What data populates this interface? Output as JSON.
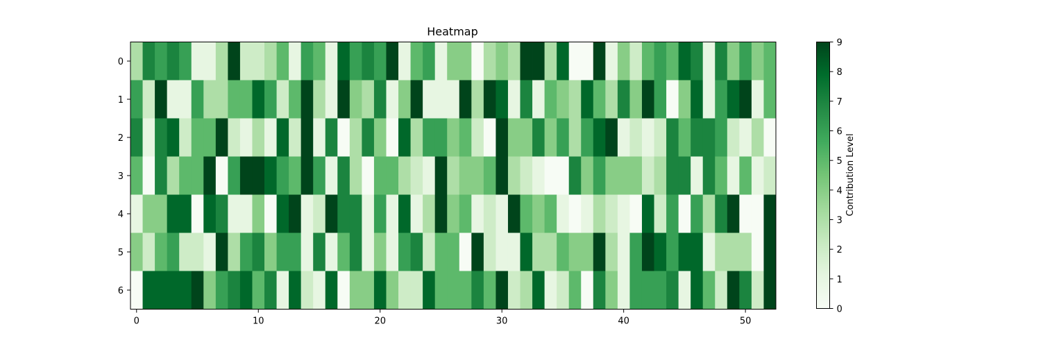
{
  "chart_data": {
    "type": "heatmap",
    "title": "Heatmap",
    "xlabel": "",
    "ylabel": "",
    "colormap": "Greens",
    "colorbar_label": "Contribution Level",
    "vmin": 0,
    "vmax": 9,
    "x_ticks": [
      0,
      10,
      20,
      30,
      40,
      50
    ],
    "y_ticks": [
      0,
      1,
      2,
      3,
      4,
      5,
      6
    ],
    "colorbar_ticks": [
      0,
      1,
      2,
      3,
      4,
      5,
      6,
      7,
      8,
      9
    ],
    "grid": false,
    "rows": 7,
    "cols": 53,
    "matrix": [
      [
        3,
        7,
        6,
        7,
        6,
        1,
        1,
        3,
        9,
        2,
        2,
        3,
        5,
        1,
        6,
        5,
        1,
        8,
        6,
        7,
        6,
        9,
        1,
        5,
        6,
        1,
        4,
        4,
        0,
        3,
        4,
        3,
        9,
        9,
        3,
        8,
        0,
        0,
        9,
        1,
        4,
        2,
        5,
        6,
        5,
        8,
        7,
        1,
        7,
        4,
        6,
        4,
        5
      ],
      [
        6,
        2,
        9,
        1,
        1,
        6,
        3,
        3,
        5,
        5,
        8,
        6,
        2,
        5,
        9,
        3,
        1,
        9,
        4,
        3,
        7,
        1,
        4,
        9,
        1,
        1,
        1,
        9,
        3,
        9,
        8,
        1,
        7,
        1,
        5,
        4,
        3,
        8,
        5,
        3,
        7,
        4,
        9,
        6,
        0,
        4,
        8,
        1,
        6,
        8,
        9,
        1,
        5
      ],
      [
        7,
        1,
        7,
        8,
        2,
        5,
        5,
        9,
        2,
        1,
        3,
        1,
        8,
        2,
        9,
        1,
        7,
        0,
        3,
        7,
        4,
        0,
        8,
        3,
        6,
        6,
        4,
        5,
        2,
        0,
        9,
        4,
        4,
        7,
        4,
        6,
        3,
        6,
        8,
        9,
        1,
        2,
        1,
        2,
        7,
        5,
        7,
        7,
        6,
        2,
        1,
        3,
        0
      ],
      [
        5,
        0,
        7,
        3,
        5,
        5,
        9,
        0,
        6,
        9,
        9,
        8,
        6,
        5,
        9,
        6,
        1,
        7,
        3,
        0,
        5,
        5,
        3,
        2,
        1,
        9,
        3,
        4,
        4,
        5,
        9,
        3,
        2,
        1,
        0,
        0,
        7,
        4,
        6,
        4,
        4,
        4,
        2,
        3,
        7,
        7,
        1,
        7,
        5,
        1,
        5,
        1,
        2
      ],
      [
        1,
        4,
        4,
        8,
        8,
        0,
        8,
        7,
        1,
        1,
        4,
        0,
        8,
        9,
        1,
        2,
        9,
        7,
        7,
        1,
        6,
        1,
        8,
        1,
        3,
        9,
        4,
        5,
        1,
        2,
        1,
        9,
        5,
        4,
        5,
        1,
        0,
        1,
        3,
        2,
        1,
        0,
        8,
        2,
        6,
        0,
        6,
        3,
        7,
        9,
        0,
        0,
        9
      ],
      [
        4,
        2,
        5,
        6,
        2,
        2,
        1,
        9,
        3,
        6,
        7,
        4,
        6,
        6,
        1,
        7,
        1,
        5,
        7,
        1,
        4,
        1,
        6,
        7,
        2,
        5,
        5,
        0,
        9,
        2,
        1,
        1,
        8,
        3,
        3,
        5,
        4,
        4,
        9,
        3,
        1,
        6,
        9,
        8,
        6,
        8,
        8,
        1,
        3,
        3,
        3,
        0,
        9
      ],
      [
        0,
        8,
        8,
        8,
        8,
        9,
        4,
        6,
        7,
        8,
        5,
        7,
        1,
        8,
        2,
        1,
        8,
        0,
        4,
        4,
        8,
        4,
        2,
        2,
        8,
        5,
        5,
        5,
        7,
        5,
        9,
        2,
        3,
        8,
        1,
        2,
        5,
        0,
        7,
        4,
        1,
        6,
        6,
        6,
        7,
        1,
        8,
        5,
        2,
        9,
        7,
        2,
        9
      ]
    ]
  }
}
